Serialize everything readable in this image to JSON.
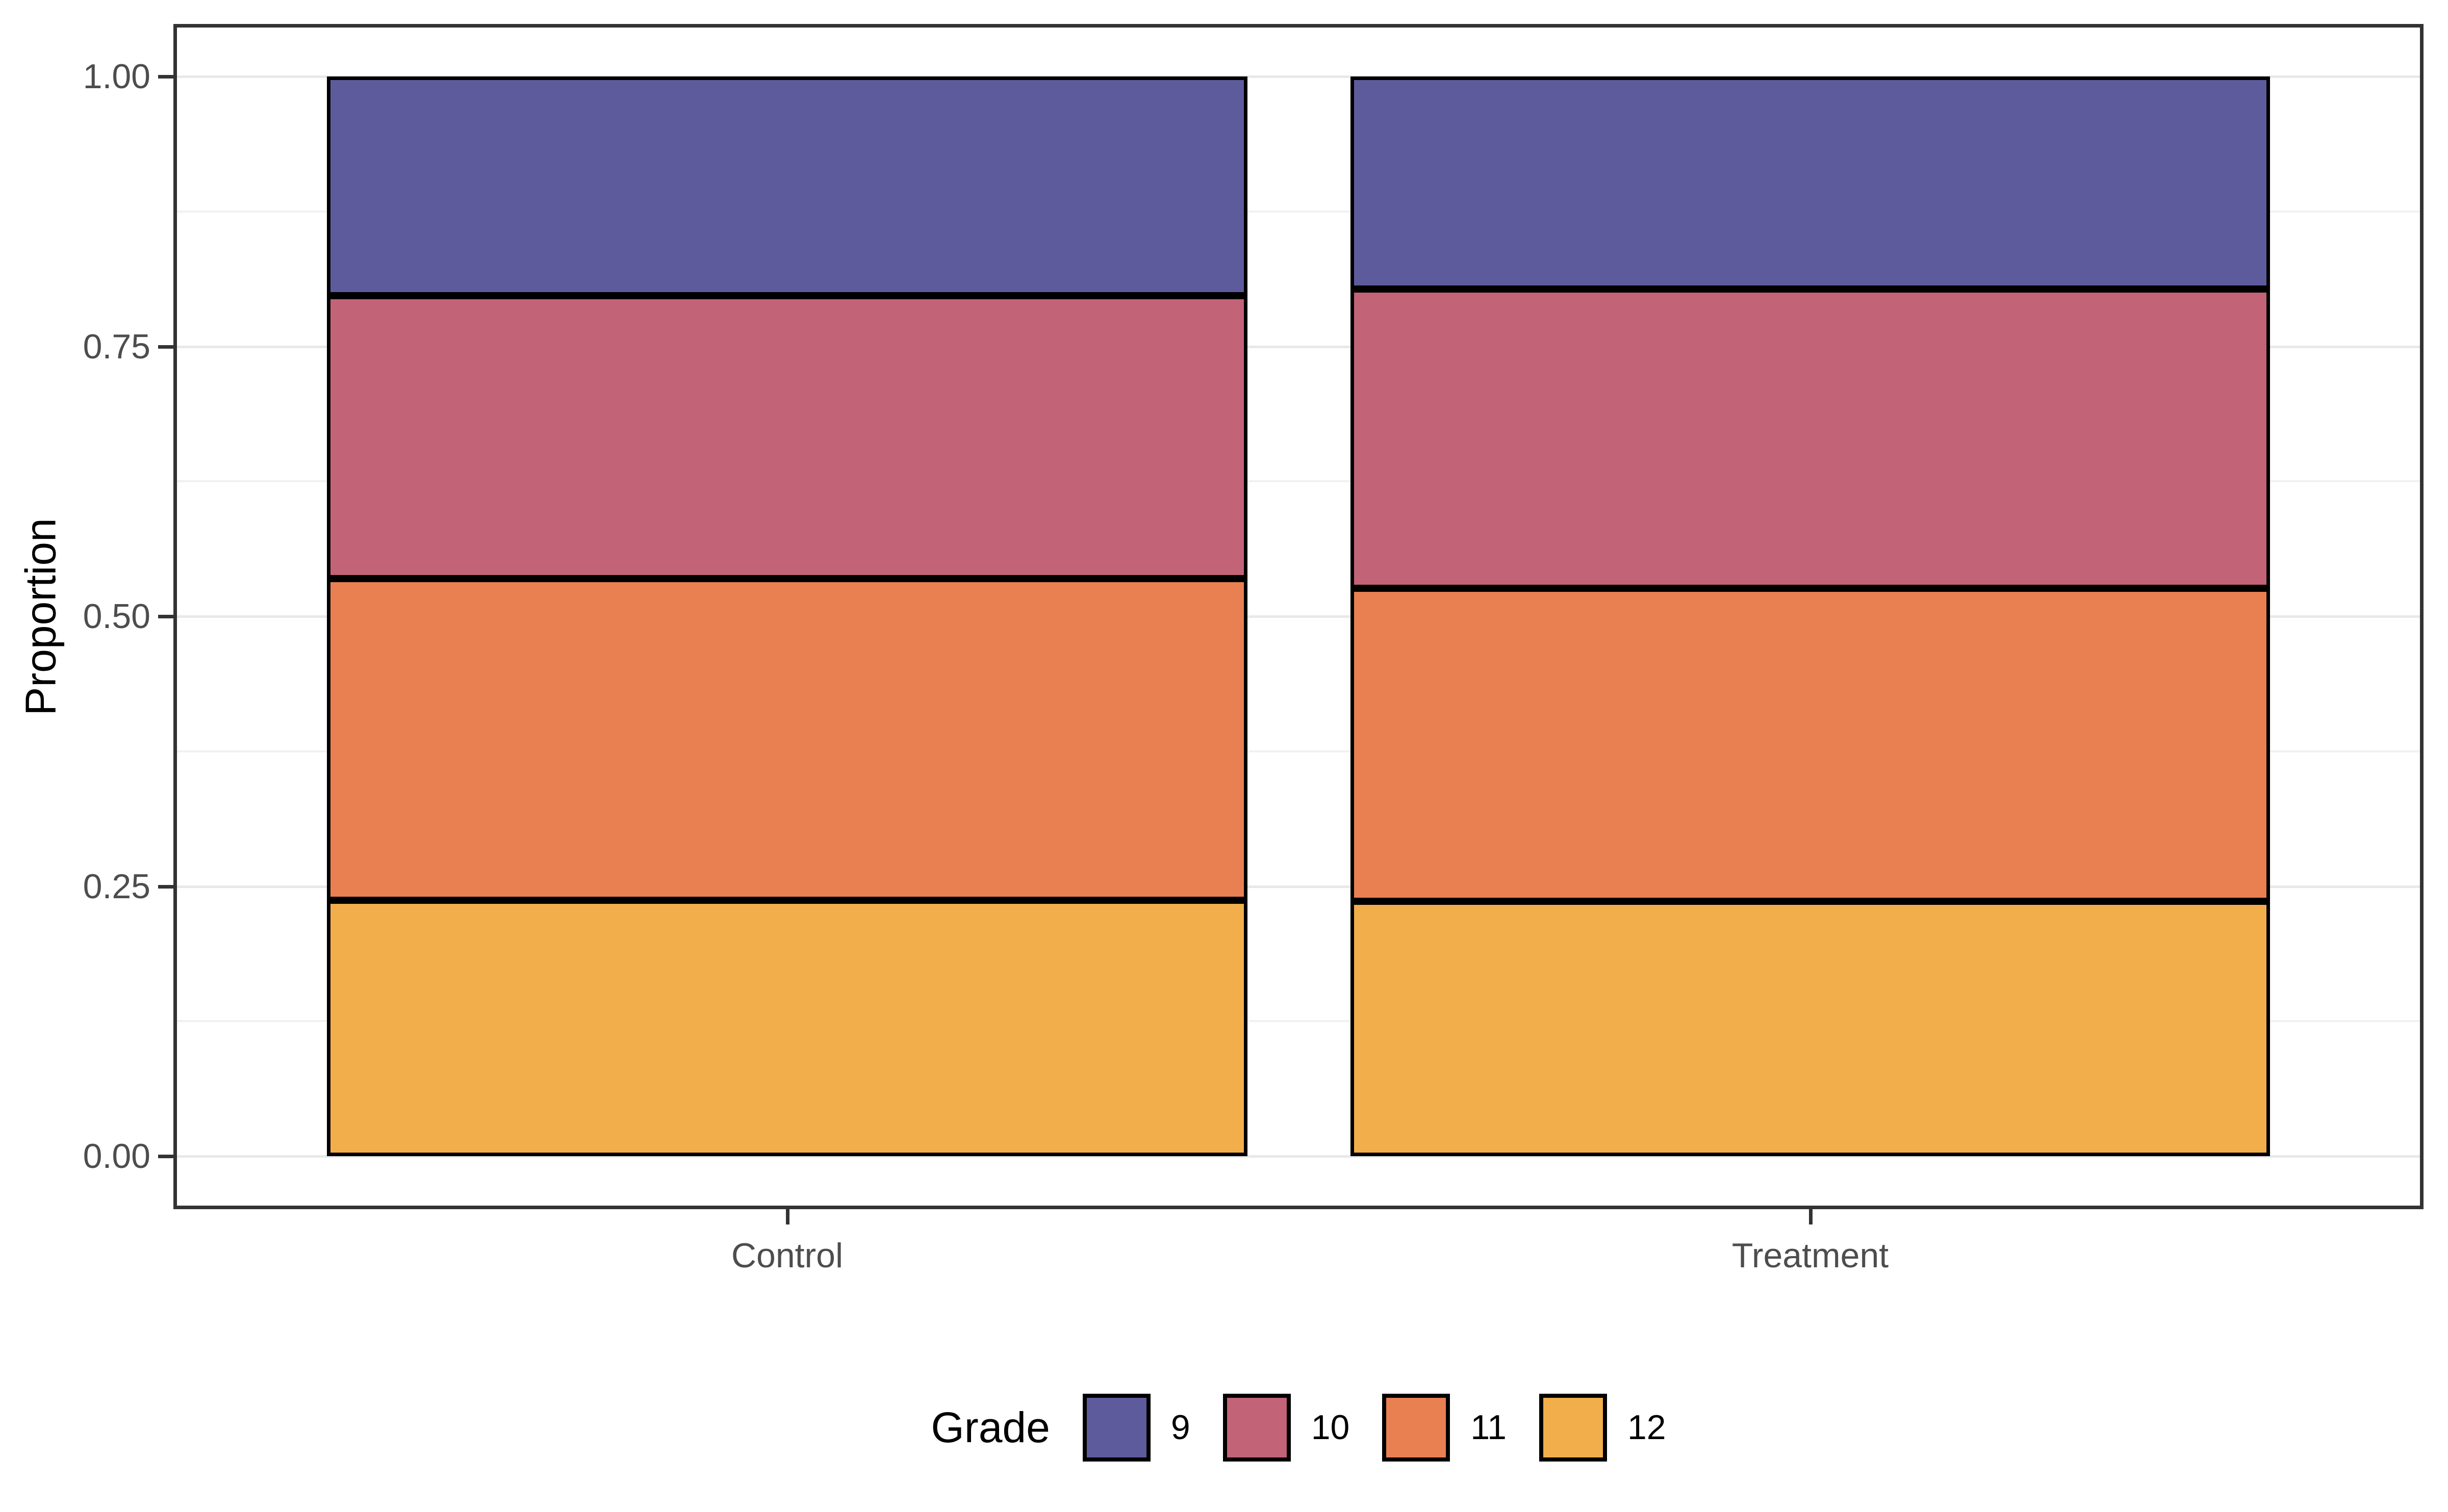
{
  "style": {
    "background": "#FFFFFF",
    "panel_background": "#FFFFFF",
    "panel_border_color": "#333333",
    "grid_major_color": "#E8E8E8",
    "grid_minor_color": "#F1F1F1",
    "tick_mark_color": "#333333",
    "axis_text_color": "#4D4D4D",
    "title_text_color": "#000000",
    "bar_border_color": "#000000"
  },
  "chart_data": {
    "type": "bar",
    "subtype": "stacked-proportion-100pct",
    "title": "",
    "xlabel": "",
    "ylabel": "Proportion",
    "categories": [
      "Control",
      "Treatment"
    ],
    "ylim": [
      0,
      1
    ],
    "yticks": [
      0,
      0.25,
      0.5,
      0.75,
      1
    ],
    "ytick_labels": [
      "0.00",
      "0.25",
      "0.50",
      "0.75",
      "1.00"
    ],
    "grid": "horizontal major + minor, light gray on white",
    "legend_position": "bottom-center",
    "legend_title": "Grade",
    "stack_order_bottom_to_top": [
      "12",
      "11",
      "10",
      "9"
    ],
    "series": [
      {
        "name": "9",
        "color": "#5E5B9D",
        "values": [
          0.203,
          0.197
        ]
      },
      {
        "name": "10",
        "color": "#C26377",
        "values": [
          0.262,
          0.277
        ]
      },
      {
        "name": "11",
        "color": "#E98052",
        "values": [
          0.298,
          0.29
        ]
      },
      {
        "name": "12",
        "color": "#F2AE4B",
        "values": [
          0.237,
          0.236
        ]
      }
    ],
    "cumulative_boundaries": {
      "Control": [
        0.237,
        0.535,
        0.797
      ],
      "Treatment": [
        0.236,
        0.526,
        0.803
      ]
    }
  }
}
